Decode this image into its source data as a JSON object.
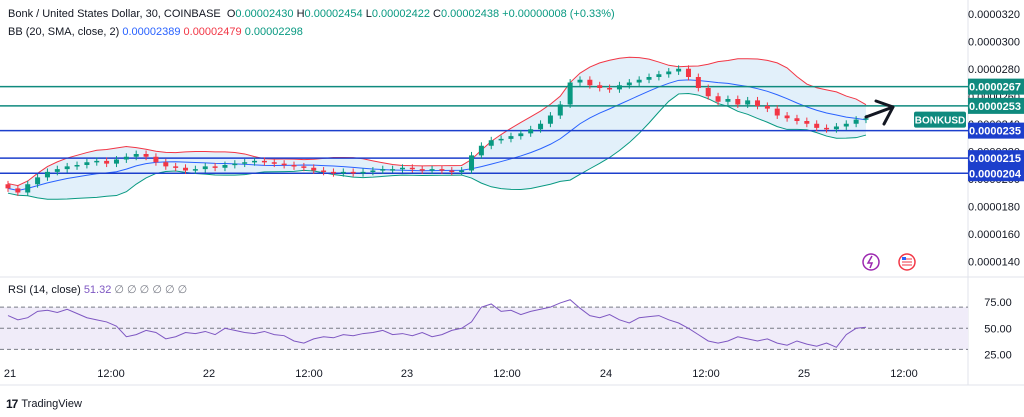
{
  "header": {
    "symbol_line": "Bonk / United States Dollar, 30, COINBASE",
    "open_label": "O",
    "open": "0.00002430",
    "high_label": "H",
    "high": "0.00002454",
    "low_label": "L",
    "low": "0.00002422",
    "close_label": "C",
    "close": "0.00002438",
    "change": "+0.00000008 (+0.33%)"
  },
  "bb_legend": {
    "label": "BB (20, SMA, close, 2)",
    "basis": "0.00002389",
    "upper": "0.00002479",
    "lower": "0.00002298"
  },
  "rsi_legend": {
    "label": "RSI (14, close)",
    "value": "51.32",
    "placeholders": "∅ ∅ ∅ ∅ ∅ ∅"
  },
  "footer": {
    "brand": "TradingView",
    "logo": "17"
  },
  "colors": {
    "up": "#089981",
    "down": "#f23645",
    "bb_basis": "#2962ff",
    "bb_upper": "#f23645",
    "bb_lower": "#089981",
    "bb_fill": "#d6e9f8",
    "teal_line": "#0f8a7e",
    "blue_line": "#1c3fcc",
    "rsi_line": "#7e57c2",
    "rsi_fill": "#f0ecf9",
    "label_bg": "#0f8a7e"
  },
  "chart_data": {
    "type": "candlestick",
    "price_axis": {
      "min": 1.3e-05,
      "max": 3.3e-05,
      "ticks": [
        "0.0000320",
        "0.0000300",
        "0.0000280",
        "0.0000260",
        "0.0000240",
        "0.0000220",
        "0.0000200",
        "0.0000180",
        "0.0000160",
        "0.0000140"
      ]
    },
    "x_axis": {
      "labels": [
        "21",
        "12:00",
        "22",
        "12:00",
        "23",
        "12:00",
        "24",
        "12:00",
        "25",
        "12:00"
      ]
    },
    "levels": [
      {
        "value": 2.67e-05,
        "label": "0.0000267",
        "kind": "teal"
      },
      {
        "value": 2.53e-05,
        "label": "0.0000253",
        "kind": "teal"
      },
      {
        "value": 2.35e-05,
        "label": "0.0000235",
        "kind": "blue"
      },
      {
        "value": 2.15e-05,
        "label": "0.0000215",
        "kind": "blue"
      },
      {
        "value": 2.04e-05,
        "label": "0.0000204",
        "kind": "blue"
      }
    ],
    "symbol_label": "BONKUSD",
    "series_close": [
      1.93e-05,
      1.9e-05,
      1.96e-05,
      2.01e-05,
      2.05e-05,
      2.07e-05,
      2.09e-05,
      2.1e-05,
      2.12e-05,
      2.13e-05,
      2.11e-05,
      2.14e-05,
      2.16e-05,
      2.18e-05,
      2.16e-05,
      2.12e-05,
      2.09e-05,
      2.08e-05,
      2.06e-05,
      2.07e-05,
      2.09e-05,
      2.08e-05,
      2.1e-05,
      2.11e-05,
      2.12e-05,
      2.13e-05,
      2.12e-05,
      2.11e-05,
      2.1e-05,
      2.09e-05,
      2.08e-05,
      2.06e-05,
      2.05e-05,
      2.04e-05,
      2.05e-05,
      2.04e-05,
      2.05e-05,
      2.06e-05,
      2.07e-05,
      2.07e-05,
      2.08e-05,
      2.07e-05,
      2.06e-05,
      2.07e-05,
      2.06e-05,
      2.05e-05,
      2.06e-05,
      2.17e-05,
      2.24e-05,
      2.28e-05,
      2.29e-05,
      2.31e-05,
      2.33e-05,
      2.36e-05,
      2.4e-05,
      2.46e-05,
      2.54e-05,
      2.7e-05,
      2.72e-05,
      2.68e-05,
      2.66e-05,
      2.65e-05,
      2.68e-05,
      2.7e-05,
      2.72e-05,
      2.74e-05,
      2.76e-05,
      2.78e-05,
      2.8e-05,
      2.74e-05,
      2.66e-05,
      2.6e-05,
      2.56e-05,
      2.58e-05,
      2.54e-05,
      2.57e-05,
      2.53e-05,
      2.51e-05,
      2.46e-05,
      2.44e-05,
      2.42e-05,
      2.4e-05,
      2.37e-05,
      2.36e-05,
      2.38e-05,
      2.4e-05,
      2.43e-05,
      2.44e-05
    ],
    "rsi": {
      "axis_ticks": [
        "75.00",
        "50.00",
        "25.00"
      ],
      "upper_band": 70,
      "lower_band": 30,
      "values": [
        62,
        58,
        60,
        66,
        67,
        65,
        68,
        64,
        60,
        58,
        56,
        52,
        42,
        44,
        48,
        46,
        40,
        42,
        46,
        45,
        47,
        44,
        50,
        48,
        46,
        45,
        47,
        44,
        43,
        38,
        36,
        40,
        42,
        41,
        44,
        43,
        45,
        46,
        48,
        44,
        45,
        43,
        46,
        42,
        44,
        48,
        50,
        56,
        70,
        73,
        66,
        67,
        63,
        66,
        68,
        70,
        74,
        77,
        69,
        62,
        60,
        63,
        58,
        55,
        60,
        61,
        62,
        58,
        55,
        50,
        44,
        38,
        36,
        38,
        42,
        40,
        38,
        40,
        36,
        34,
        38,
        35,
        33,
        36,
        32,
        44,
        50,
        51
      ]
    }
  }
}
